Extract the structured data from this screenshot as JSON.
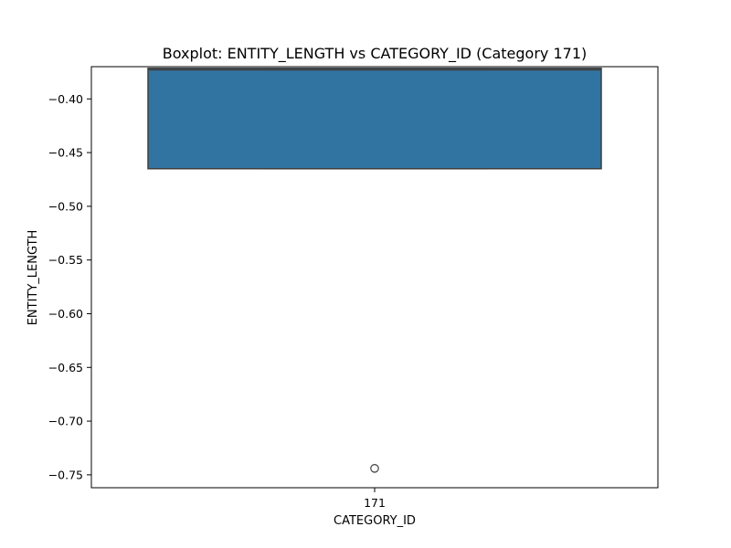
{
  "chart_data": {
    "type": "boxplot",
    "title": "Boxplot: ENTITY_LENGTH vs CATEGORY_ID (Category 171)",
    "xlabel": "CATEGORY_ID",
    "ylabel": "ENTITY_LENGTH",
    "categories": [
      "171"
    ],
    "ylim": [
      -0.762,
      -0.37
    ],
    "yticks": [
      -0.4,
      -0.45,
      -0.5,
      -0.55,
      -0.6,
      -0.65,
      -0.7,
      -0.75
    ],
    "ytick_labels": [
      "−0.40",
      "−0.45",
      "−0.50",
      "−0.55",
      "−0.60",
      "−0.65",
      "−0.70",
      "−0.75"
    ],
    "boxes": [
      {
        "category": "171",
        "whisker_low": -0.465,
        "q1": -0.465,
        "median": -0.373,
        "q3": -0.3715,
        "whisker_high": -0.3715,
        "outliers": [
          -0.744
        ]
      }
    ],
    "grid": false,
    "colors": {
      "box_fill": "#3274a1",
      "box_edge": "#3f3f3f",
      "axis": "#000000"
    }
  }
}
